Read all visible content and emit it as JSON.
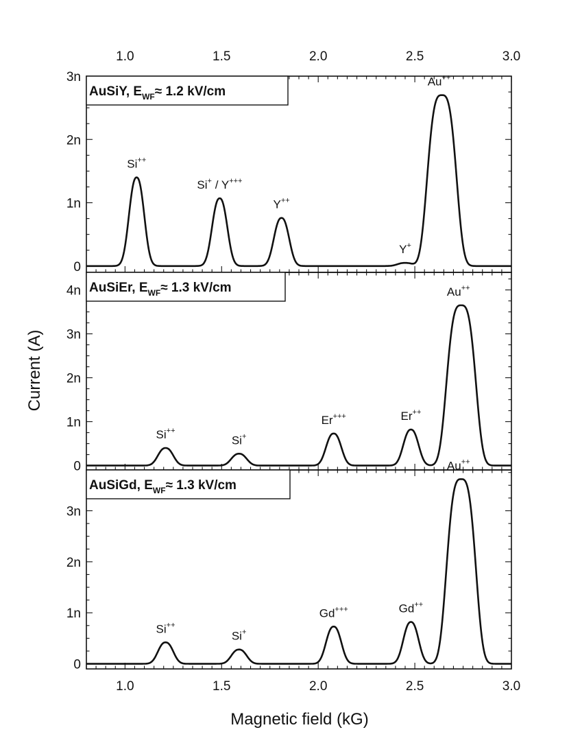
{
  "chart_data": {
    "type": "line",
    "xlabel": "Magnetic field (kG)",
    "ylabel": "Current (A)",
    "xlim": [
      0.8,
      3.0
    ],
    "x_ticks": [
      "1.0",
      "1.5",
      "2.0",
      "2.5",
      "3.0"
    ],
    "x_tick_values": [
      1.0,
      1.5,
      2.0,
      2.5,
      3.0
    ],
    "grid": false,
    "panels": [
      {
        "label_main": "AuSiY, E",
        "label_sub": "WF",
        "label_rest": "≈ 1.2 kV/cm",
        "ylim": [
          -0.1,
          3.0
        ],
        "y_ticks": [
          "0",
          "1n",
          "2n",
          "3n"
        ],
        "y_tick_values": [
          0,
          1,
          2,
          3
        ],
        "peaks": [
          {
            "ion": "Si",
            "charge": "++",
            "x": 1.06,
            "height": 1.4
          },
          {
            "ion": "Si",
            "charge": "+",
            "suffix": " / Y",
            "suffix_charge": "+++",
            "x": 1.49,
            "height": 1.07
          },
          {
            "ion": "Y",
            "charge": "++",
            "x": 1.81,
            "height": 0.76
          },
          {
            "ion": "Y",
            "charge": "+",
            "x": 2.45,
            "height": 0.05
          },
          {
            "ion": "Au",
            "charge": "++",
            "x": 2.64,
            "height": 2.7
          }
        ]
      },
      {
        "label_main": "AuSiEr, E",
        "label_sub": "WF",
        "label_rest": "≈ 1.3 kV/cm",
        "ylim": [
          -0.1,
          4.4
        ],
        "y_ticks": [
          "0",
          "1n",
          "2n",
          "3n",
          "4n"
        ],
        "y_tick_values": [
          0,
          1,
          2,
          3,
          4
        ],
        "peaks": [
          {
            "ion": "Si",
            "charge": "++",
            "x": 1.21,
            "height": 0.4
          },
          {
            "ion": "Si",
            "charge": "+",
            "x": 1.59,
            "height": 0.27
          },
          {
            "ion": "Er",
            "charge": "+++",
            "x": 2.08,
            "height": 0.73
          },
          {
            "ion": "Er",
            "charge": "++",
            "x": 2.48,
            "height": 0.82
          },
          {
            "ion": "Au",
            "charge": "++",
            "x": 2.74,
            "height": 3.65
          }
        ]
      },
      {
        "label_main": "AuSiGd, E",
        "label_sub": "WF",
        "label_rest": "≈ 1.3 kV/cm",
        "ylim": [
          -0.1,
          3.8
        ],
        "y_ticks": [
          "0",
          "1n",
          "2n",
          "3n"
        ],
        "y_tick_values": [
          0,
          1,
          2,
          3
        ],
        "peaks": [
          {
            "ion": "Si",
            "charge": "++",
            "x": 1.21,
            "height": 0.42
          },
          {
            "ion": "Si",
            "charge": "+",
            "x": 1.59,
            "height": 0.28
          },
          {
            "ion": "Gd",
            "charge": "+++",
            "x": 2.08,
            "height": 0.73
          },
          {
            "ion": "Gd",
            "charge": "++",
            "x": 2.48,
            "height": 0.82
          },
          {
            "ion": "Au",
            "charge": "++",
            "x": 2.74,
            "height": 3.62
          }
        ]
      }
    ]
  }
}
